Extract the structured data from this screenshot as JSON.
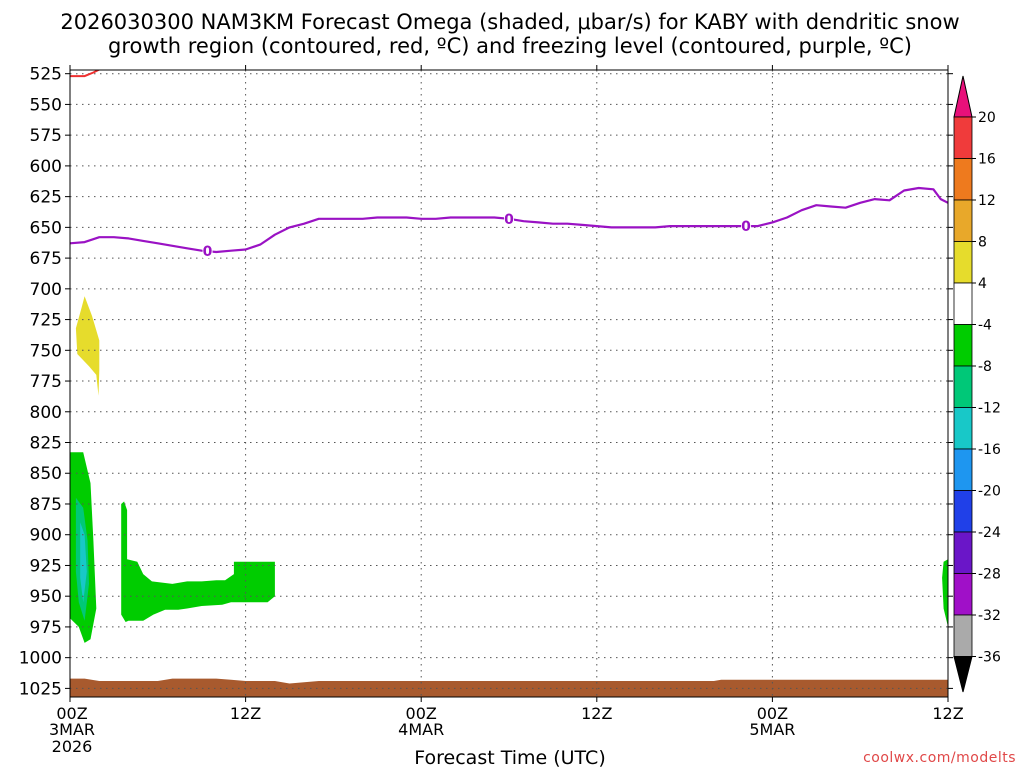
{
  "chart_data": {
    "type": "contour",
    "title_line1": "2026030300 NAM3KM Forecast Omega (shaded, μbar/s) for KABY with dendritic snow",
    "title_line2": "growth region (contoured, red, ºC) and freezing level (contoured, purple, ºC)",
    "xlabel": "Forecast Time (UTC)",
    "x_axis": {
      "unit": "forecast hour",
      "range": [
        0,
        60
      ],
      "ticks": [
        {
          "hour": 0,
          "label": "00Z",
          "sub1": "3MAR",
          "sub2": "2026"
        },
        {
          "hour": 12,
          "label": "12Z",
          "sub1": "",
          "sub2": ""
        },
        {
          "hour": 24,
          "label": "00Z",
          "sub1": "4MAR",
          "sub2": ""
        },
        {
          "hour": 36,
          "label": "12Z",
          "sub1": "",
          "sub2": ""
        },
        {
          "hour": 48,
          "label": "00Z",
          "sub1": "5MAR",
          "sub2": ""
        },
        {
          "hour": 60,
          "label": "12Z",
          "sub1": "",
          "sub2": ""
        }
      ]
    },
    "y_axis": {
      "unit": "hPa",
      "top": 522,
      "bottom": 1032,
      "ticks": [
        525,
        550,
        575,
        600,
        625,
        650,
        675,
        700,
        725,
        750,
        775,
        800,
        825,
        850,
        875,
        900,
        925,
        950,
        975,
        1000,
        1025
      ]
    },
    "colorbar": {
      "levels": [
        20,
        16,
        12,
        8,
        4,
        -4,
        -8,
        -12,
        -16,
        -20,
        -24,
        -28,
        -32,
        -36
      ],
      "colors": [
        "#e8107a",
        "#f03b3b",
        "#ee7a1e",
        "#e8a82a",
        "#e6dc2c",
        "#ffffff",
        "#00cc00",
        "#00c878",
        "#18c8c8",
        "#1e96f0",
        "#2040e8",
        "#6a16c8",
        "#a010c8",
        "#aaaaaa",
        "#000000"
      ]
    },
    "freezing_level": {
      "color": "#9a12c4",
      "label": "0",
      "label_hours": [
        9.4,
        30.0,
        46.2
      ],
      "points": [
        [
          0,
          663
        ],
        [
          1,
          662
        ],
        [
          2,
          658
        ],
        [
          3,
          658
        ],
        [
          4,
          659
        ],
        [
          5,
          661
        ],
        [
          6,
          663
        ],
        [
          7,
          665
        ],
        [
          8,
          667
        ],
        [
          9,
          669
        ],
        [
          10,
          670
        ],
        [
          11,
          669
        ],
        [
          12,
          668
        ],
        [
          13,
          664
        ],
        [
          14,
          656
        ],
        [
          15,
          650
        ],
        [
          16,
          647
        ],
        [
          17,
          643
        ],
        [
          18,
          643
        ],
        [
          19,
          643
        ],
        [
          20,
          643
        ],
        [
          21,
          642
        ],
        [
          22,
          642
        ],
        [
          23,
          642
        ],
        [
          24,
          643
        ],
        [
          25,
          643
        ],
        [
          26,
          642
        ],
        [
          27,
          642
        ],
        [
          28,
          642
        ],
        [
          29,
          642
        ],
        [
          30,
          643
        ],
        [
          31,
          645
        ],
        [
          32,
          646
        ],
        [
          33,
          647
        ],
        [
          34,
          647
        ],
        [
          35,
          648
        ],
        [
          36,
          649
        ],
        [
          37,
          650
        ],
        [
          38,
          650
        ],
        [
          39,
          650
        ],
        [
          40,
          650
        ],
        [
          41,
          649
        ],
        [
          42,
          649
        ],
        [
          43,
          649
        ],
        [
          44,
          649
        ],
        [
          45,
          649
        ],
        [
          46,
          649
        ],
        [
          47,
          649
        ],
        [
          48,
          646
        ],
        [
          49,
          642
        ],
        [
          50,
          636
        ],
        [
          51,
          632
        ],
        [
          52,
          633
        ],
        [
          53,
          634
        ],
        [
          54,
          630
        ],
        [
          55,
          627
        ],
        [
          56,
          628
        ],
        [
          57,
          620
        ],
        [
          58,
          618
        ],
        [
          59,
          619
        ],
        [
          59.5,
          627
        ],
        [
          60,
          630
        ]
      ]
    },
    "dendritic_zone": {
      "color": "#ee3030",
      "points": [
        [
          0,
          527
        ],
        [
          0.5,
          527
        ],
        [
          1,
          527
        ],
        [
          1.6,
          524
        ],
        [
          2.1,
          521
        ]
      ]
    },
    "omega_regions": [
      {
        "value_range": "4 to 8",
        "color": "#e6dc2c",
        "points": [
          [
            0.4,
            732
          ],
          [
            0.8,
            715
          ],
          [
            1.0,
            706
          ],
          [
            1.5,
            722
          ],
          [
            2.0,
            742
          ],
          [
            2.0,
            766
          ],
          [
            1.95,
            787
          ],
          [
            1.8,
            770
          ],
          [
            1.3,
            763
          ],
          [
            0.5,
            753
          ]
        ]
      },
      {
        "value_range": "-4 to -8",
        "color": "#00cc00",
        "points": [
          [
            0,
            833
          ],
          [
            0.9,
            833
          ],
          [
            1.4,
            858
          ],
          [
            1.6,
            905
          ],
          [
            1.8,
            960
          ],
          [
            1.4,
            985
          ],
          [
            1.0,
            988
          ],
          [
            0.6,
            975
          ],
          [
            0,
            968
          ]
        ]
      },
      {
        "value_range": "-8 to -12",
        "color": "#00c878",
        "points": [
          [
            0.4,
            870
          ],
          [
            0.9,
            878
          ],
          [
            1.2,
            905
          ],
          [
            1.3,
            940
          ],
          [
            1.0,
            970
          ],
          [
            0.6,
            955
          ],
          [
            0.4,
            930
          ]
        ]
      },
      {
        "value_range": "-12 to -16",
        "color": "#18c8c8",
        "points": [
          [
            0.7,
            890
          ],
          [
            1.0,
            900
          ],
          [
            1.15,
            930
          ],
          [
            0.9,
            955
          ],
          [
            0.7,
            935
          ]
        ]
      },
      {
        "value_range": "-4 to -8",
        "color": "#00cc00",
        "points": [
          [
            3.5,
            875
          ],
          [
            3.7,
            873
          ],
          [
            3.9,
            880
          ],
          [
            3.9,
            920
          ],
          [
            4.6,
            922
          ],
          [
            5.0,
            932
          ],
          [
            5.6,
            938
          ],
          [
            7.0,
            940
          ],
          [
            8.0,
            938
          ],
          [
            9.0,
            938
          ],
          [
            10.0,
            937
          ],
          [
            10.6,
            937
          ],
          [
            11.2,
            932
          ],
          [
            11.2,
            922
          ],
          [
            14.0,
            922
          ],
          [
            14.0,
            950
          ],
          [
            13.5,
            955
          ],
          [
            12.8,
            955
          ],
          [
            11.0,
            955
          ],
          [
            10.4,
            957
          ],
          [
            9.0,
            958
          ],
          [
            8.0,
            960
          ],
          [
            7.4,
            961
          ],
          [
            6.5,
            961
          ],
          [
            5.7,
            965
          ],
          [
            5.0,
            970
          ],
          [
            4.0,
            970
          ],
          [
            3.8,
            971
          ],
          [
            3.5,
            965
          ]
        ]
      },
      {
        "value_range": "-4 to -8",
        "color": "#00cc00",
        "points": [
          [
            60,
            920
          ],
          [
            59.7,
            922
          ],
          [
            59.6,
            935
          ],
          [
            59.7,
            960
          ],
          [
            60,
            975
          ]
        ]
      }
    ],
    "terrain": {
      "color": "#a85a2e",
      "surface": [
        [
          0,
          1017
        ],
        [
          1,
          1017
        ],
        [
          2,
          1019
        ],
        [
          4,
          1019
        ],
        [
          6,
          1019
        ],
        [
          7,
          1017
        ],
        [
          10,
          1017
        ],
        [
          11,
          1018
        ],
        [
          12,
          1019
        ],
        [
          14,
          1019
        ],
        [
          15,
          1021
        ],
        [
          16,
          1020
        ],
        [
          17,
          1019
        ],
        [
          20,
          1019
        ],
        [
          30,
          1019
        ],
        [
          40,
          1019
        ],
        [
          44,
          1019
        ],
        [
          44.5,
          1018
        ],
        [
          48,
          1018
        ],
        [
          60,
          1018
        ]
      ]
    }
  },
  "credit": "coolwx.com/modelts"
}
